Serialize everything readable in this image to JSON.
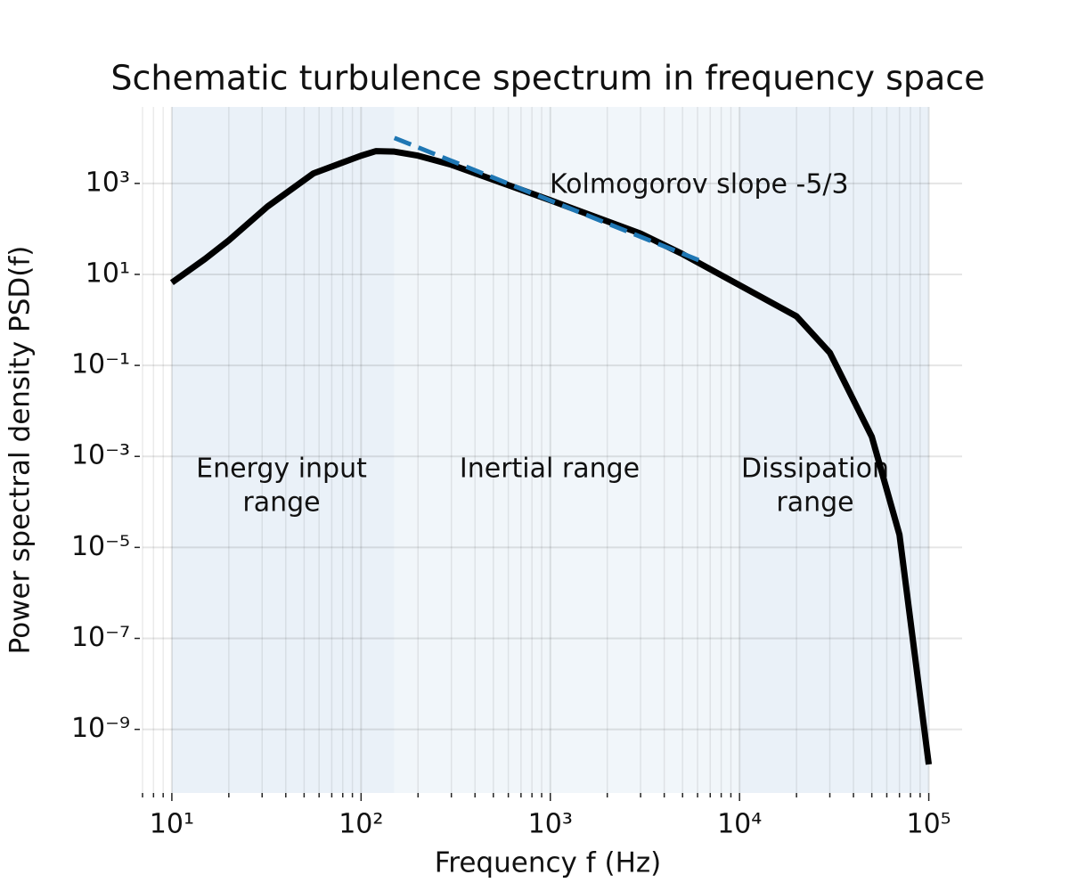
{
  "chart_data": {
    "type": "line",
    "title": "Schematic turbulence spectrum in frequency space",
    "xlabel": "Frequency f (Hz)",
    "ylabel": "Power spectral density PSD(f)",
    "xscale": "log",
    "yscale": "log",
    "grid": true,
    "xlim": [
      7,
      150000
    ],
    "ylim": [
      4e-11,
      48000
    ],
    "xticks": [
      {
        "value": 10,
        "label": "10¹"
      },
      {
        "value": 100,
        "label": "10²"
      },
      {
        "value": 1000,
        "label": "10³"
      },
      {
        "value": 10000,
        "label": "10⁴"
      },
      {
        "value": 100000,
        "label": "10⁵"
      }
    ],
    "xminorticks": [
      7,
      8,
      9,
      20,
      30,
      40,
      50,
      60,
      70,
      80,
      90,
      200,
      300,
      400,
      500,
      600,
      700,
      800,
      900,
      2000,
      3000,
      4000,
      5000,
      6000,
      7000,
      8000,
      9000,
      20000,
      30000,
      40000,
      50000,
      60000,
      70000,
      80000,
      90000
    ],
    "yticks": [
      {
        "value": 1e-09,
        "label": "10⁻⁹"
      },
      {
        "value": 1e-07,
        "label": "10⁻⁷"
      },
      {
        "value": 1e-05,
        "label": "10⁻⁵"
      },
      {
        "value": 0.001,
        "label": "10⁻³"
      },
      {
        "value": 0.1,
        "label": "10⁻¹"
      },
      {
        "value": 10,
        "label": "10¹"
      },
      {
        "value": 1000,
        "label": "10³"
      }
    ],
    "x": [
      10,
      15,
      20,
      32,
      56,
      100,
      120,
      150,
      200,
      300,
      1000,
      3000,
      5000,
      10000,
      20000,
      30000,
      50000,
      70000,
      100000
    ],
    "values": [
      6.6,
      22,
      56,
      309,
      1660,
      4070,
      5130,
      5000,
      4070,
      2570,
      427,
      79,
      28,
      5.8,
      1.2,
      0.19,
      0.0027,
      1.9e-05,
      1.7e-10
    ],
    "color": "#000000",
    "reference_line": {
      "label": "Kolmogorov slope  -5/3",
      "x": [
        150,
        6600
      ],
      "values": [
        10000,
        18
      ],
      "color": "#1f77b4"
    },
    "regions": [
      {
        "lines": [
          "Energy input",
          "range"
        ],
        "x": [
          10,
          150
        ],
        "color": "#eaf1f8"
      },
      {
        "lines": [
          "Inertial range"
        ],
        "x": [
          150,
          10000
        ],
        "color": "#f1f6fa"
      },
      {
        "lines": [
          "Dissipation",
          "range"
        ],
        "x": [
          10000,
          100000
        ],
        "color": "#eaf1f8"
      }
    ]
  }
}
